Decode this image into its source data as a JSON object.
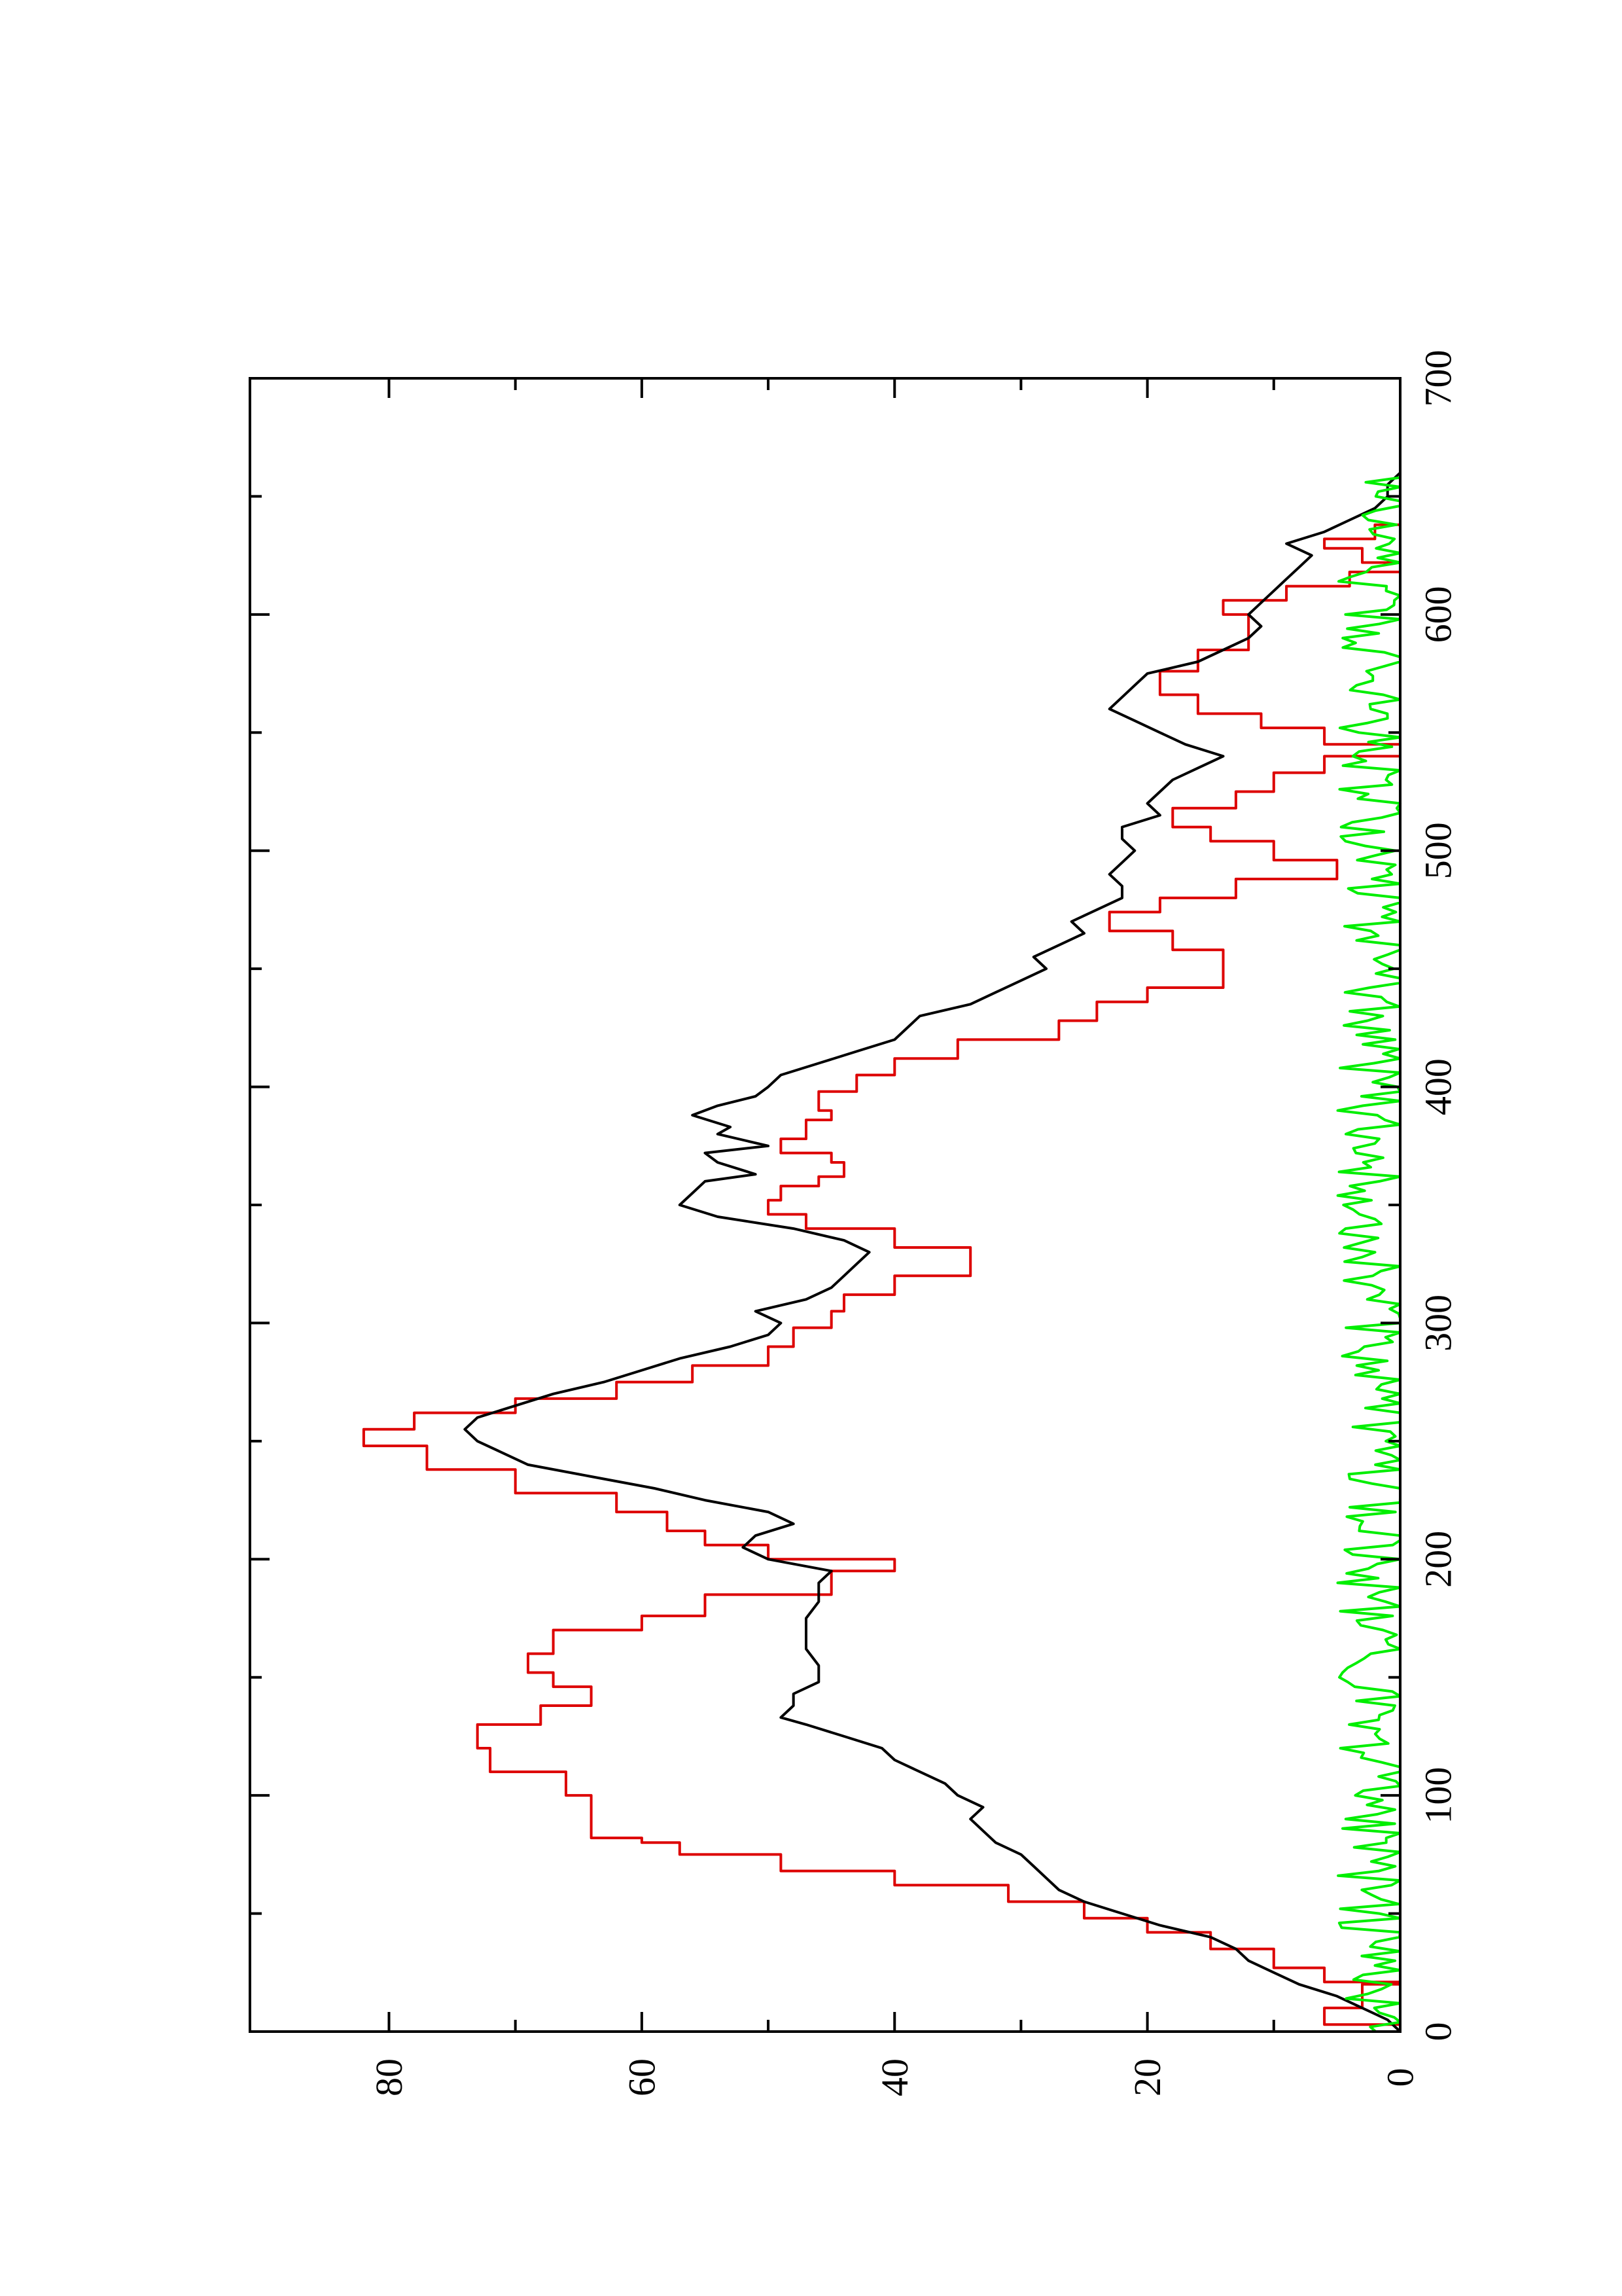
{
  "chart_data": {
    "type": "line",
    "title": "",
    "xlabel": "",
    "ylabel": "",
    "orientation": "rotated-90-ccw",
    "xlim": [
      0,
      700
    ],
    "ylim": [
      0,
      91
    ],
    "x_ticks": [
      0,
      100,
      200,
      300,
      400,
      500,
      600,
      700
    ],
    "x_tick_labels": [
      "0",
      "100",
      "200",
      "300",
      "400",
      "500",
      "600",
      "700"
    ],
    "y_ticks": [
      0,
      20,
      40,
      60,
      80
    ],
    "y_tick_labels": [
      "0",
      "20",
      "40",
      "60",
      "80"
    ],
    "series": [
      {
        "color": "#dd0000",
        "step": true,
        "x": [
          0,
          3,
          10,
          20,
          21,
          27,
          35,
          42,
          48,
          55,
          62,
          68,
          75,
          80,
          82,
          100,
          110,
          120,
          130,
          138,
          146,
          152,
          160,
          170,
          176,
          185,
          195,
          200,
          206,
          212,
          220,
          228,
          238,
          248,
          255,
          262,
          268,
          275,
          282,
          290,
          298,
          305,
          312,
          320,
          328,
          332,
          340,
          346,
          352,
          358,
          362,
          368,
          372,
          378,
          386,
          390,
          398,
          405,
          412,
          420,
          428,
          436,
          442,
          448,
          458,
          466,
          474,
          480,
          488,
          496,
          504,
          510,
          518,
          525,
          533,
          540,
          545,
          552,
          558,
          566,
          570,
          576,
          585,
          592,
          600,
          606,
          612,
          618,
          622,
          628,
          632,
          638,
          642,
          648,
          652
        ],
        "values": [
          0,
          6,
          3,
          0,
          6,
          10,
          15,
          20,
          25,
          31,
          40,
          49,
          57,
          60,
          64,
          66,
          72,
          73,
          68,
          64,
          67,
          69,
          67,
          60,
          55,
          45,
          40,
          50,
          55,
          58,
          62,
          70,
          77,
          82,
          78,
          70,
          62,
          56,
          50,
          48,
          45,
          44,
          40,
          34,
          34,
          40,
          47,
          50,
          49,
          46,
          44,
          45,
          49,
          47,
          45,
          46,
          43,
          40,
          35,
          27,
          24,
          20,
          14,
          14,
          18,
          23,
          19,
          13,
          5,
          10,
          15,
          18,
          13,
          10,
          6,
          0,
          6,
          11,
          16,
          19,
          19,
          16,
          12,
          12,
          14,
          9,
          4,
          0,
          3,
          6,
          2,
          0,
          0,
          0,
          0
        ]
      },
      {
        "color": "#000000",
        "x": [
          0,
          5,
          10,
          15,
          20,
          25,
          30,
          35,
          40,
          45,
          50,
          55,
          60,
          65,
          70,
          75,
          80,
          85,
          90,
          95,
          100,
          105,
          110,
          115,
          120,
          125,
          130,
          133,
          138,
          143,
          148,
          155,
          162,
          168,
          175,
          182,
          190,
          195,
          200,
          205,
          210,
          215,
          220,
          225,
          230,
          235,
          240,
          245,
          250,
          255,
          260,
          265,
          270,
          275,
          280,
          285,
          290,
          295,
          300,
          305,
          310,
          315,
          320,
          325,
          330,
          335,
          340,
          345,
          350,
          355,
          360,
          363,
          368,
          372,
          375,
          380,
          383,
          388,
          392,
          396,
          400,
          405,
          410,
          415,
          420,
          425,
          430,
          435,
          440,
          445,
          450,
          455,
          460,
          465,
          470,
          475,
          480,
          485,
          490,
          495,
          500,
          505,
          510,
          515,
          520,
          525,
          530,
          535,
          540,
          545,
          550,
          555,
          560,
          565,
          570,
          575,
          580,
          585,
          590,
          595,
          600,
          605,
          610,
          615,
          620,
          625,
          630,
          635,
          640,
          645,
          650,
          655,
          660
        ],
        "values": [
          0,
          1,
          3,
          5,
          8,
          10,
          12,
          13,
          15,
          19,
          22,
          25,
          27,
          28,
          29,
          30,
          32,
          33,
          34,
          33,
          35,
          36,
          38,
          40,
          41,
          44,
          47,
          49,
          48,
          48,
          46,
          46,
          47,
          47,
          47,
          46,
          46,
          45,
          50,
          52,
          51,
          48,
          50,
          55,
          59,
          64,
          69,
          71,
          73,
          74,
          73,
          70,
          67,
          63,
          60,
          57,
          53,
          50,
          49,
          51,
          47,
          45,
          44,
          43,
          42,
          44,
          48,
          54,
          57,
          56,
          55,
          51,
          54,
          55,
          50,
          54,
          53,
          56,
          54,
          51,
          50,
          49,
          46,
          43,
          40,
          39,
          38,
          34,
          32,
          30,
          28,
          29,
          27,
          25,
          26,
          24,
          22,
          22,
          23,
          22,
          21,
          22,
          22,
          19,
          20,
          19,
          18,
          16,
          14,
          17,
          19,
          21,
          23,
          22,
          21,
          20,
          16,
          14,
          12,
          11,
          12,
          11,
          10,
          9,
          8,
          7,
          9,
          6,
          4,
          2,
          1,
          1,
          0
        ]
      },
      {
        "color": "#00ee00",
        "noise": true,
        "x_start": 0,
        "x_end": 660,
        "x_step": 2,
        "mean": 2,
        "amplitude": 3
      }
    ]
  }
}
